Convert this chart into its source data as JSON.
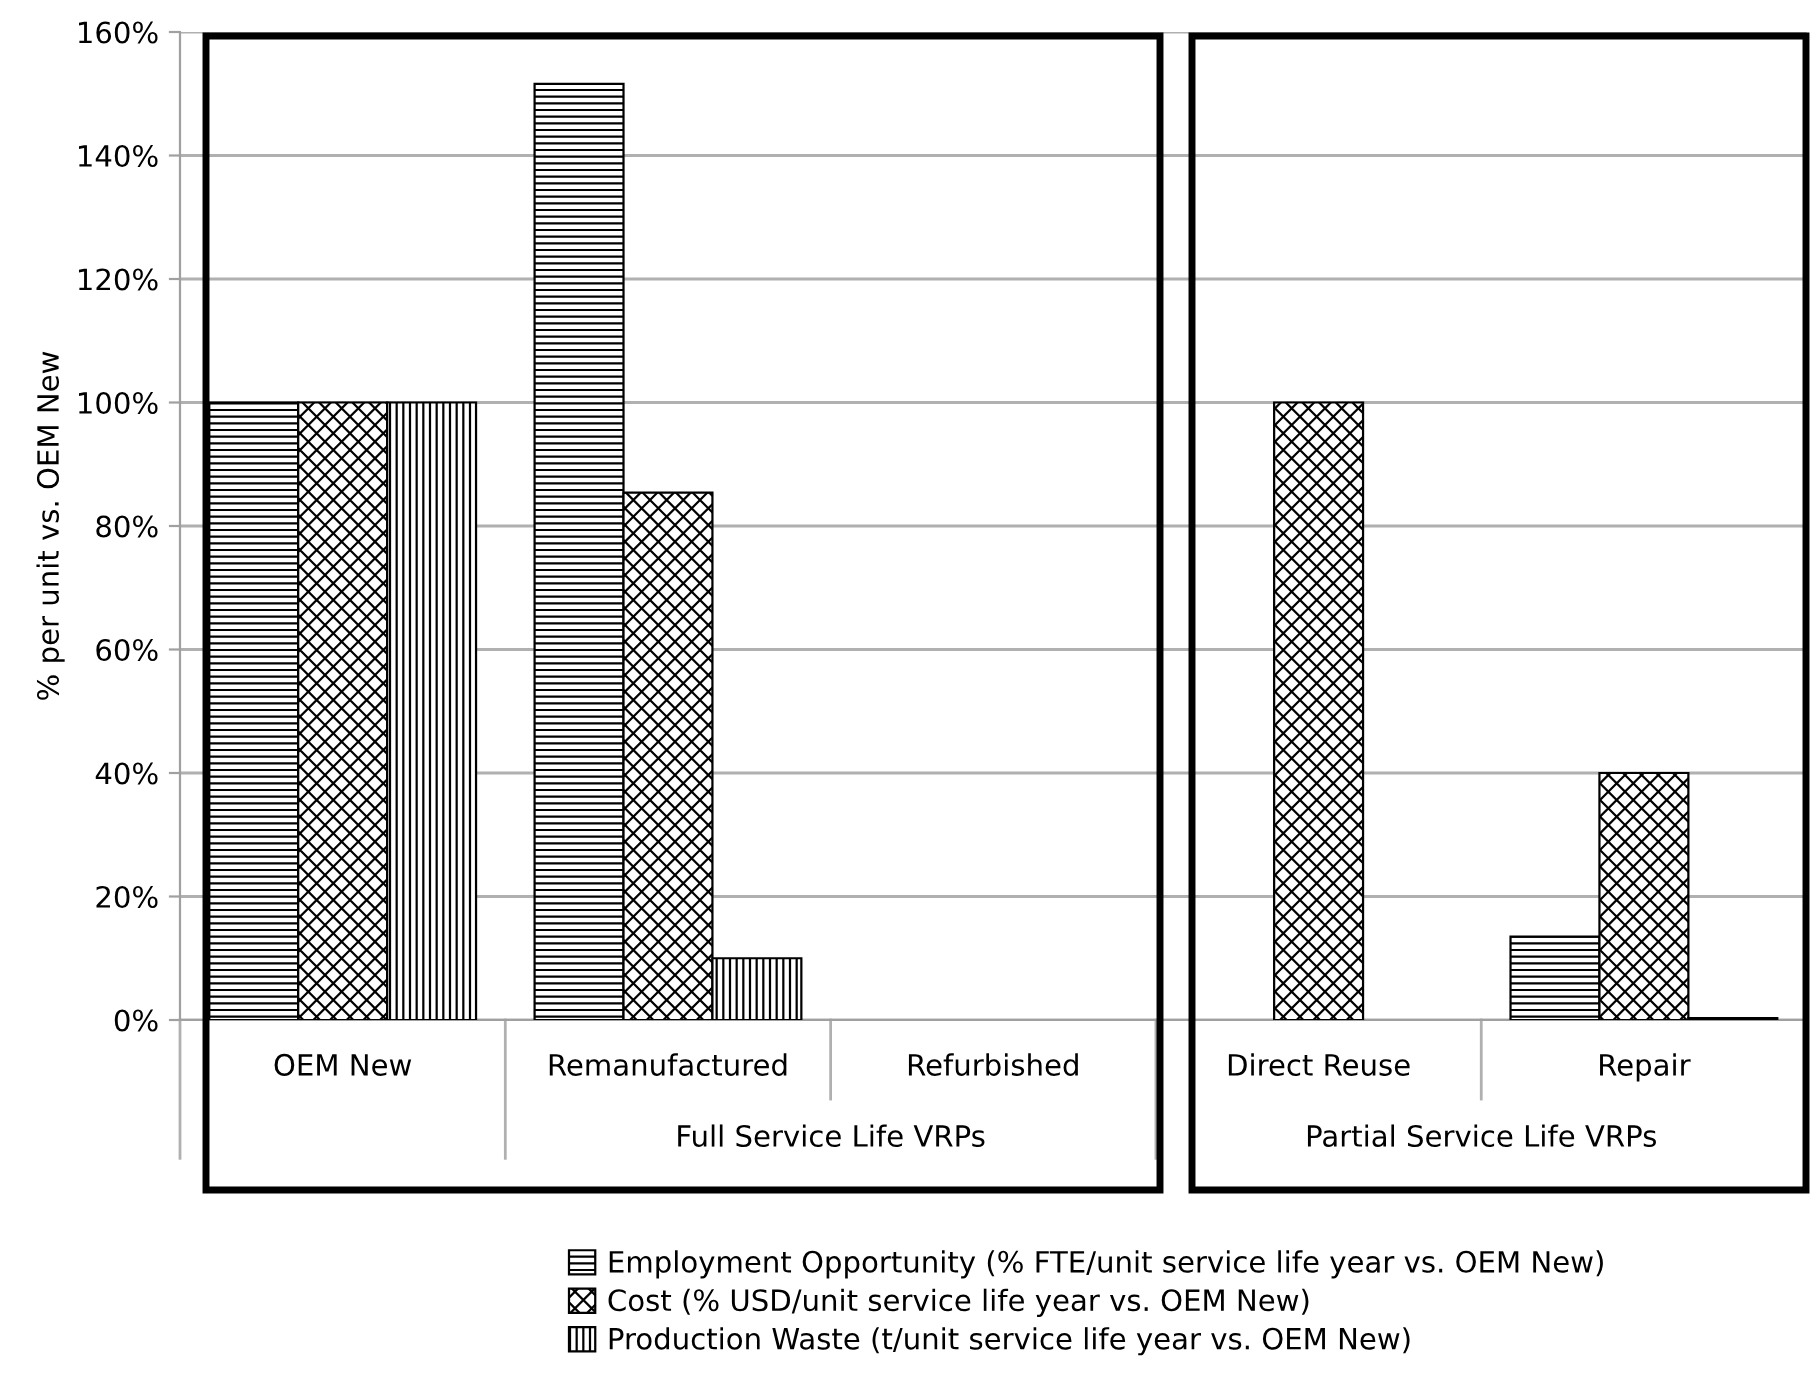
{
  "chart_data": {
    "type": "bar",
    "ylabel": "% per unit vs. OEM New",
    "categories": [
      "OEM New",
      "Remanufactured",
      "Refurbished",
      "Direct Reuse",
      "Repair"
    ],
    "series": [
      {
        "name": "Employment Opportunity (% FTE/unit service life year vs. OEM New)",
        "color": "#000000",
        "values": [
          100,
          151.6,
          null,
          null,
          13.5
        ]
      },
      {
        "name": "Cost (% USD/unit service life year vs. OEM New)",
        "color": "#000000",
        "values": [
          100,
          85.4,
          null,
          100,
          40
        ]
      },
      {
        "name": "Production Waste (t/unit service life year vs. OEM New)",
        "color": "#000000",
        "values": [
          100,
          10,
          null,
          null,
          0.3
        ]
      }
    ],
    "ylim": [
      0,
      160
    ],
    "yticks": [
      {
        "value": 0,
        "label": "0%"
      },
      {
        "value": 20,
        "label": "20%"
      },
      {
        "value": 40,
        "label": "40%"
      },
      {
        "value": 60,
        "label": "60%"
      },
      {
        "value": 80,
        "label": "80%"
      },
      {
        "value": 100,
        "label": "100%"
      },
      {
        "value": 120,
        "label": "120%"
      },
      {
        "value": 140,
        "label": "140%"
      },
      {
        "value": 160,
        "label": "160%"
      }
    ],
    "annotations": [
      "Full Service Life VRPs",
      "Partial Service Life VRPs"
    ],
    "grid": "y",
    "legend": "bottom"
  }
}
